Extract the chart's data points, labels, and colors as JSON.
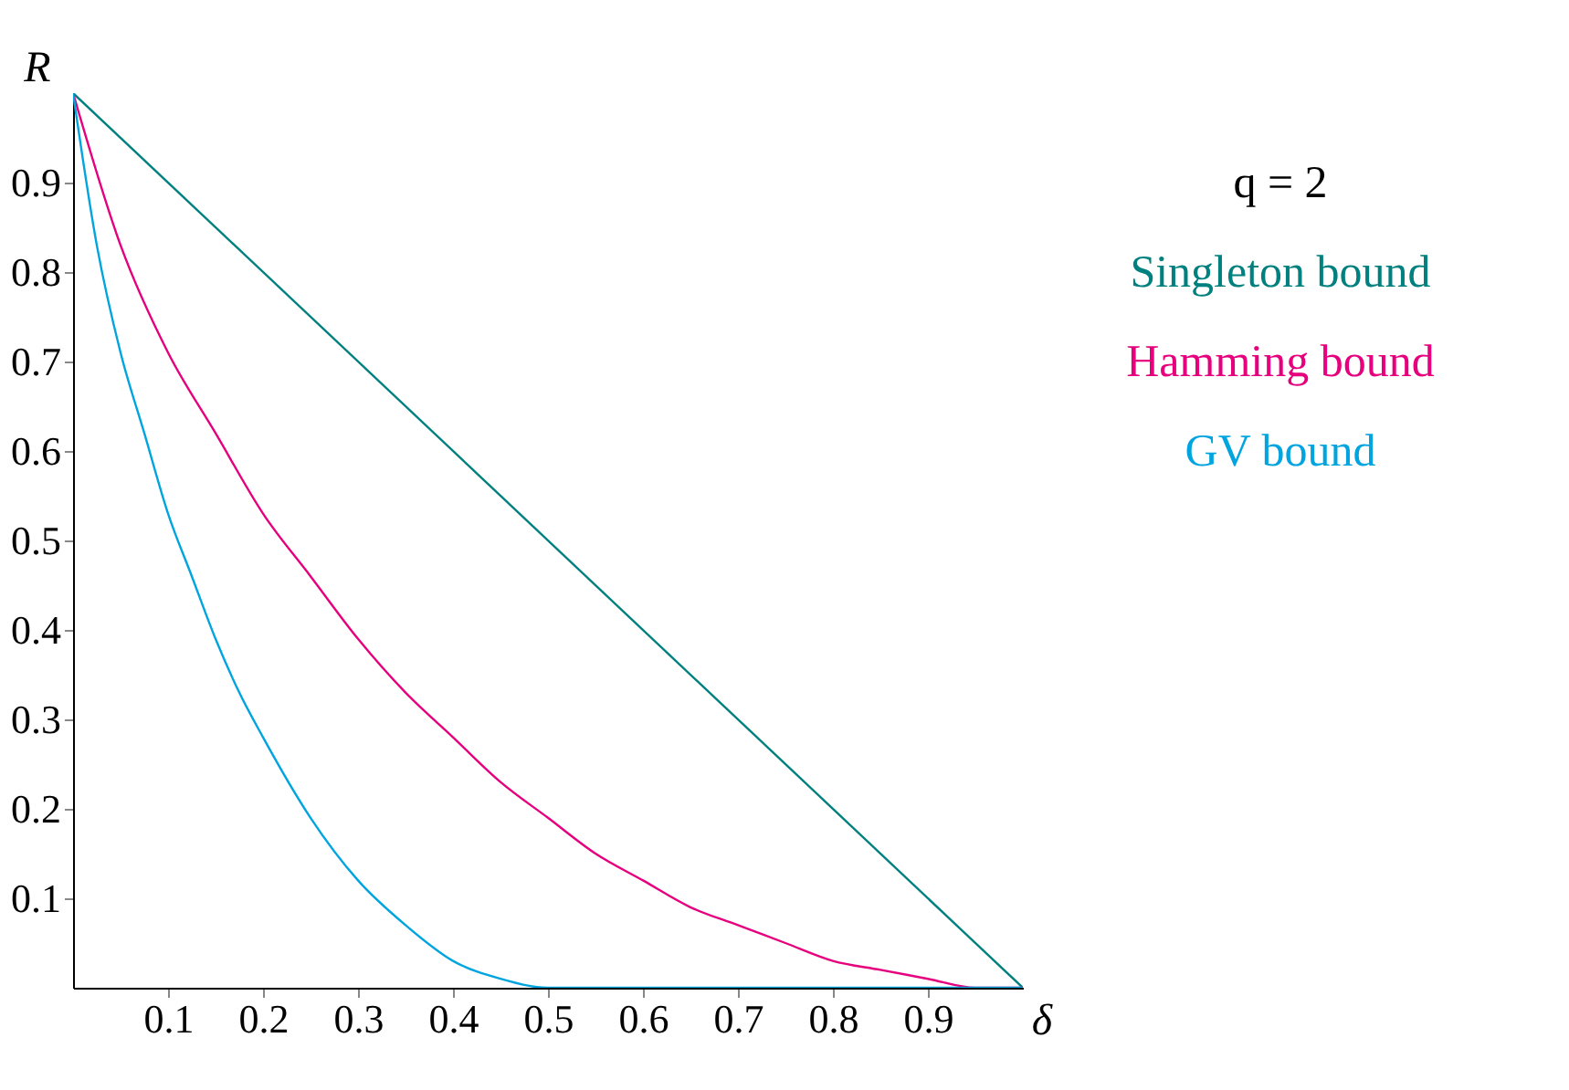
{
  "chart_data": {
    "type": "line",
    "xlabel": "δ",
    "ylabel": "R",
    "annotations": [
      "q = 2"
    ],
    "xlim": [
      0,
      1
    ],
    "ylim": [
      0,
      1
    ],
    "xticks": [
      0.1,
      0.2,
      0.3,
      0.4,
      0.5,
      0.6,
      0.7,
      0.8,
      0.9
    ],
    "yticks": [
      0.1,
      0.2,
      0.3,
      0.4,
      0.5,
      0.6,
      0.7,
      0.8,
      0.9
    ],
    "grid": false,
    "legend": "right",
    "line_style": "solid",
    "marker": "none",
    "series": [
      {
        "name": "Singleton bound",
        "color": "#00807f",
        "x": [
          0,
          1
        ],
        "values": [
          1,
          0
        ]
      },
      {
        "name": "Hamming bound",
        "color": "#e6007e",
        "x": [
          0,
          0.05,
          0.1,
          0.15,
          0.2,
          0.25,
          0.3,
          0.35,
          0.4,
          0.45,
          0.5,
          0.55,
          0.6,
          0.65,
          0.7,
          0.75,
          0.8,
          0.85,
          0.9,
          0.95,
          1
        ],
        "values": [
          1,
          0.83,
          0.71,
          0.62,
          0.53,
          0.46,
          0.39,
          0.33,
          0.28,
          0.23,
          0.19,
          0.15,
          0.12,
          0.09,
          0.07,
          0.05,
          0.03,
          0.02,
          0.01,
          0.0,
          0
        ]
      },
      {
        "name": "GV bound",
        "color": "#00a5e0",
        "x": [
          0,
          0.025,
          0.05,
          0.075,
          0.1,
          0.125,
          0.15,
          0.175,
          0.2,
          0.25,
          0.3,
          0.35,
          0.4,
          0.45,
          0.5,
          0.75,
          1
        ],
        "values": [
          1,
          0.83,
          0.71,
          0.62,
          0.53,
          0.46,
          0.39,
          0.33,
          0.28,
          0.19,
          0.12,
          0.07,
          0.03,
          0.01,
          0,
          0,
          0
        ]
      }
    ]
  }
}
